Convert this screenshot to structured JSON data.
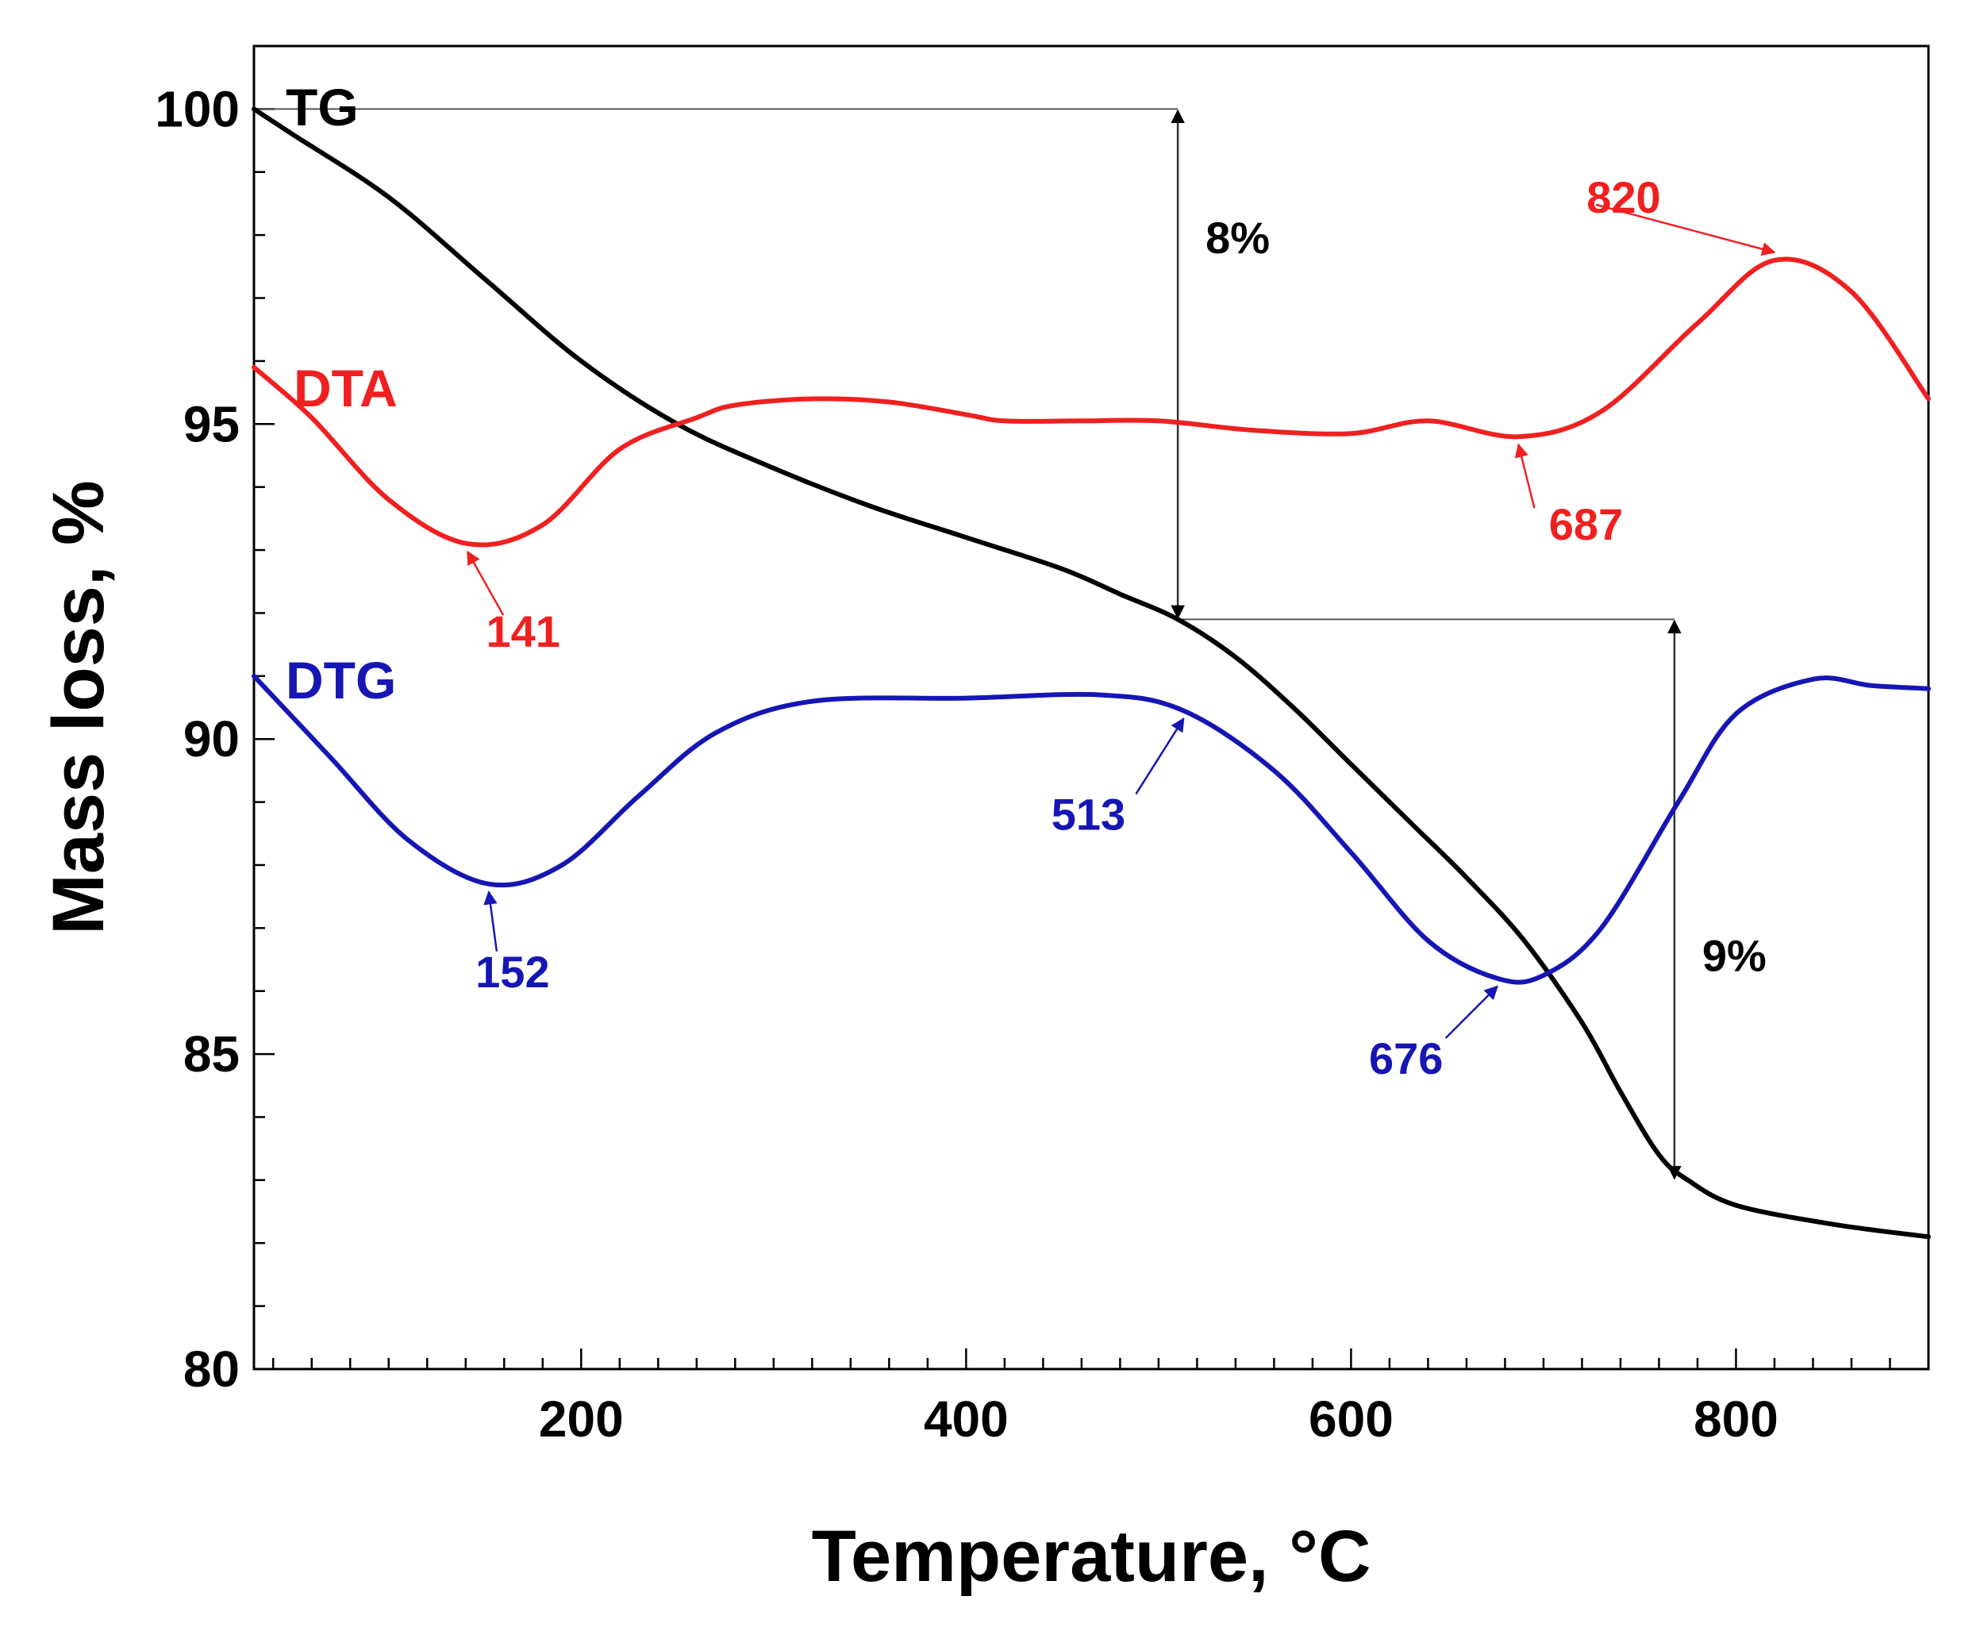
{
  "chart_data": {
    "type": "line",
    "title": "",
    "xlabel": "Temperature, °C",
    "ylabel": "Mass loss, %",
    "xlim": [
      30,
      900
    ],
    "ylim": [
      80,
      101
    ],
    "x_ticks": [
      200,
      400,
      600,
      800
    ],
    "y_ticks": [
      80,
      85,
      90,
      95,
      100
    ],
    "grid": false,
    "colors": {
      "TG": "#000000",
      "DTA": "#f02020",
      "DTG": "#1616b4"
    },
    "series": [
      {
        "name": "TG",
        "label": "TG",
        "color": "#000000",
        "points": [
          [
            30,
            100.0
          ],
          [
            50,
            99.6
          ],
          [
            100,
            98.6
          ],
          [
            150,
            97.3
          ],
          [
            200,
            96.0
          ],
          [
            250,
            95.0
          ],
          [
            300,
            94.3
          ],
          [
            350,
            93.7
          ],
          [
            400,
            93.2
          ],
          [
            450,
            92.7
          ],
          [
            480,
            92.3
          ],
          [
            510,
            91.9
          ],
          [
            540,
            91.3
          ],
          [
            570,
            90.5
          ],
          [
            600,
            89.6
          ],
          [
            630,
            88.7
          ],
          [
            660,
            87.8
          ],
          [
            690,
            86.8
          ],
          [
            720,
            85.5
          ],
          [
            740,
            84.4
          ],
          [
            760,
            83.4
          ],
          [
            775,
            83.0
          ],
          [
            800,
            82.6
          ],
          [
            850,
            82.3
          ],
          [
            900,
            82.1
          ]
        ]
      },
      {
        "name": "DTA",
        "label": "DTA",
        "color": "#f02020",
        "points": [
          [
            30,
            95.9
          ],
          [
            60,
            95.1
          ],
          [
            100,
            93.8
          ],
          [
            141,
            93.1
          ],
          [
            180,
            93.4
          ],
          [
            220,
            94.6
          ],
          [
            260,
            95.1
          ],
          [
            280,
            95.3
          ],
          [
            320,
            95.4
          ],
          [
            360,
            95.35
          ],
          [
            400,
            95.15
          ],
          [
            420,
            95.05
          ],
          [
            460,
            95.05
          ],
          [
            500,
            95.05
          ],
          [
            550,
            94.9
          ],
          [
            600,
            94.85
          ],
          [
            640,
            95.05
          ],
          [
            687,
            94.8
          ],
          [
            730,
            95.2
          ],
          [
            780,
            96.6
          ],
          [
            820,
            97.6
          ],
          [
            860,
            97.1
          ],
          [
            900,
            95.4
          ]
        ]
      },
      {
        "name": "DTG",
        "label": "DTG",
        "color": "#1616b4",
        "points": [
          [
            30,
            91.0
          ],
          [
            70,
            89.7
          ],
          [
            110,
            88.4
          ],
          [
            152,
            87.7
          ],
          [
            190,
            88.0
          ],
          [
            230,
            89.1
          ],
          [
            270,
            90.1
          ],
          [
            320,
            90.6
          ],
          [
            400,
            90.65
          ],
          [
            470,
            90.7
          ],
          [
            513,
            90.45
          ],
          [
            560,
            89.5
          ],
          [
            600,
            88.2
          ],
          [
            640,
            86.8
          ],
          [
            676,
            86.2
          ],
          [
            700,
            86.25
          ],
          [
            730,
            87.0
          ],
          [
            770,
            89.0
          ],
          [
            800,
            90.4
          ],
          [
            840,
            90.95
          ],
          [
            870,
            90.85
          ],
          [
            900,
            90.8
          ]
        ]
      }
    ],
    "annotations": {
      "peaks": [
        {
          "text": "820",
          "series": "DTA",
          "x": 820
        },
        {
          "text": "687",
          "series": "DTA",
          "x": 687
        },
        {
          "text": "141",
          "series": "DTA",
          "x": 141
        },
        {
          "text": "152",
          "series": "DTG",
          "x": 152
        },
        {
          "text": "513",
          "series": "DTG",
          "x": 513
        },
        {
          "text": "676",
          "series": "DTG",
          "x": 676
        }
      ],
      "mass_steps": [
        {
          "text": "8%",
          "x": 510,
          "from": 100.0,
          "to": 91.9
        },
        {
          "text": "9%",
          "x": 768,
          "from": 91.9,
          "to": 83.0
        }
      ]
    }
  }
}
